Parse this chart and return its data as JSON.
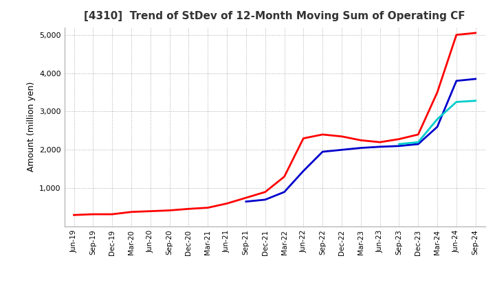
{
  "title": "[4310]  Trend of StDev of 12-Month Moving Sum of Operating CF",
  "ylabel": "Amount (million yen)",
  "ylim": [
    0,
    5200
  ],
  "yticks": [
    1000,
    2000,
    3000,
    4000,
    5000
  ],
  "background_color": "#ffffff",
  "grid_color": "#aaaaaa",
  "line_colors": {
    "3y": "#ff0000",
    "5y": "#0000cc",
    "7y": "#00cccc",
    "10y": "#008000"
  },
  "x_labels": [
    "Jun-19",
    "Sep-19",
    "Dec-19",
    "Mar-20",
    "Jun-20",
    "Sep-20",
    "Dec-20",
    "Mar-21",
    "Jun-21",
    "Sep-21",
    "Dec-21",
    "Mar-22",
    "Jun-22",
    "Sep-22",
    "Dec-22",
    "Mar-23",
    "Jun-23",
    "Sep-23",
    "Dec-23",
    "Mar-24",
    "Jun-24",
    "Sep-24"
  ],
  "series_3y": [
    300,
    320,
    320,
    380,
    400,
    420,
    460,
    490,
    600,
    750,
    900,
    1300,
    2300,
    2400,
    2350,
    2250,
    2200,
    2280,
    2400,
    3500,
    5000,
    5050
  ],
  "series_5y": [
    null,
    null,
    null,
    null,
    null,
    null,
    null,
    null,
    null,
    650,
    700,
    900,
    1450,
    1950,
    2000,
    2050,
    2080,
    2100,
    2150,
    2600,
    3800,
    3850
  ],
  "series_7y": [
    null,
    null,
    null,
    null,
    null,
    null,
    null,
    null,
    null,
    null,
    null,
    null,
    null,
    null,
    null,
    null,
    null,
    2150,
    2200,
    2800,
    3250,
    3280
  ],
  "series_10y": [
    null,
    null,
    null,
    null,
    null,
    null,
    null,
    null,
    null,
    null,
    null,
    null,
    null,
    null,
    null,
    null,
    null,
    null,
    null,
    null,
    null,
    null
  ]
}
